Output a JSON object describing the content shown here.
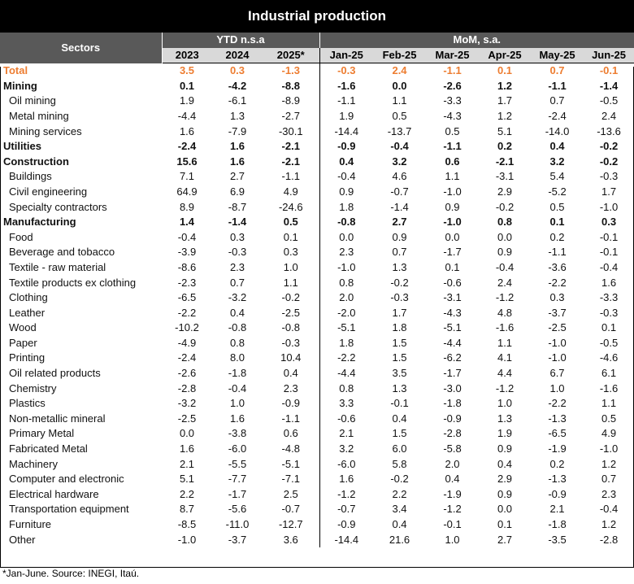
{
  "title": "Industrial production",
  "header": {
    "sectors": "Sectors",
    "ytd_group": "YTD n.s.a",
    "mom_group": "MoM, s.a.",
    "years": [
      "2023",
      "2024",
      "2025*"
    ],
    "months": [
      "Jan-25",
      "Feb-25",
      "Mar-25",
      "Apr-25",
      "May-25",
      "Jun-25"
    ]
  },
  "rows": [
    {
      "name": "Total",
      "level": "total",
      "v": [
        "3.5",
        "0.3",
        "-1.3",
        "-0.3",
        "2.4",
        "-1.1",
        "0.1",
        "0.7",
        "-0.1"
      ]
    },
    {
      "name": "Mining",
      "level": "bold",
      "v": [
        "0.1",
        "-4.2",
        "-8.8",
        "-1.6",
        "0.0",
        "-2.6",
        "1.2",
        "-1.1",
        "-1.4"
      ]
    },
    {
      "name": "Oil mining",
      "level": "sub",
      "v": [
        "1.9",
        "-6.1",
        "-8.9",
        "-1.1",
        "1.1",
        "-3.3",
        "1.7",
        "0.7",
        "-0.5"
      ]
    },
    {
      "name": "Metal mining",
      "level": "sub",
      "v": [
        "-4.4",
        "1.3",
        "-2.7",
        "1.9",
        "0.5",
        "-4.3",
        "1.2",
        "-2.4",
        "2.4"
      ]
    },
    {
      "name": "Mining services",
      "level": "sub",
      "v": [
        "1.6",
        "-7.9",
        "-30.1",
        "-14.4",
        "-13.7",
        "0.5",
        "5.1",
        "-14.0",
        "-13.6"
      ]
    },
    {
      "name": "Utilities",
      "level": "bold",
      "v": [
        "-2.4",
        "1.6",
        "-2.1",
        "-0.9",
        "-0.4",
        "-1.1",
        "0.2",
        "0.4",
        "-0.2"
      ]
    },
    {
      "name": "Construction",
      "level": "bold",
      "v": [
        "15.6",
        "1.6",
        "-2.1",
        "0.4",
        "3.2",
        "0.6",
        "-2.1",
        "3.2",
        "-0.2"
      ]
    },
    {
      "name": "Buildings",
      "level": "sub",
      "v": [
        "7.1",
        "2.7",
        "-1.1",
        "-0.4",
        "4.6",
        "1.1",
        "-3.1",
        "5.4",
        "-0.3"
      ]
    },
    {
      "name": "Civil engineering",
      "level": "sub",
      "v": [
        "64.9",
        "6.9",
        "4.9",
        "0.9",
        "-0.7",
        "-1.0",
        "2.9",
        "-5.2",
        "1.7"
      ]
    },
    {
      "name": "Specialty contractors",
      "level": "sub",
      "v": [
        "8.9",
        "-8.7",
        "-24.6",
        "1.8",
        "-1.4",
        "0.9",
        "-0.2",
        "0.5",
        "-1.0"
      ]
    },
    {
      "name": "Manufacturing",
      "level": "bold",
      "v": [
        "1.4",
        "-1.4",
        "0.5",
        "-0.8",
        "2.7",
        "-1.0",
        "0.8",
        "0.1",
        "0.3"
      ]
    },
    {
      "name": "Food",
      "level": "sub",
      "v": [
        "-0.4",
        "0.3",
        "0.1",
        "0.0",
        "0.9",
        "0.0",
        "0.0",
        "0.2",
        "-0.1"
      ]
    },
    {
      "name": "Beverage and tobacco",
      "level": "sub",
      "v": [
        "-3.9",
        "-0.3",
        "0.3",
        "2.3",
        "0.7",
        "-1.7",
        "0.9",
        "-1.1",
        "-0.1"
      ]
    },
    {
      "name": "Textile - raw material",
      "level": "sub",
      "v": [
        "-8.6",
        "2.3",
        "1.0",
        "-1.0",
        "1.3",
        "0.1",
        "-0.4",
        "-3.6",
        "-0.4"
      ]
    },
    {
      "name": "Textile products ex clothing",
      "level": "sub",
      "v": [
        "-2.3",
        "0.7",
        "1.1",
        "0.8",
        "-0.2",
        "-0.6",
        "2.4",
        "-2.2",
        "1.6"
      ]
    },
    {
      "name": "Clothing",
      "level": "sub",
      "v": [
        "-6.5",
        "-3.2",
        "-0.2",
        "2.0",
        "-0.3",
        "-3.1",
        "-1.2",
        "0.3",
        "-3.3"
      ]
    },
    {
      "name": "Leather",
      "level": "sub",
      "v": [
        "-2.2",
        "0.4",
        "-2.5",
        "-2.0",
        "1.7",
        "-4.3",
        "4.8",
        "-3.7",
        "-0.3"
      ]
    },
    {
      "name": "Wood",
      "level": "sub",
      "v": [
        "-10.2",
        "-0.8",
        "-0.8",
        "-5.1",
        "1.8",
        "-5.1",
        "-1.6",
        "-2.5",
        "0.1"
      ]
    },
    {
      "name": "Paper",
      "level": "sub",
      "v": [
        "-4.9",
        "0.8",
        "-0.3",
        "1.8",
        "1.5",
        "-4.4",
        "1.1",
        "-1.0",
        "-0.5"
      ]
    },
    {
      "name": "Printing",
      "level": "sub",
      "v": [
        "-2.4",
        "8.0",
        "10.4",
        "-2.2",
        "1.5",
        "-6.2",
        "4.1",
        "-1.0",
        "-4.6"
      ]
    },
    {
      "name": "Oil related products",
      "level": "sub",
      "v": [
        "-2.6",
        "-1.8",
        "0.4",
        "-4.4",
        "3.5",
        "-1.7",
        "4.4",
        "6.7",
        "6.1"
      ]
    },
    {
      "name": "Chemistry",
      "level": "sub",
      "v": [
        "-2.8",
        "-0.4",
        "2.3",
        "0.8",
        "1.3",
        "-3.0",
        "-1.2",
        "1.0",
        "-1.6"
      ]
    },
    {
      "name": "Plastics",
      "level": "sub",
      "v": [
        "-3.2",
        "1.0",
        "-0.9",
        "3.3",
        "-0.1",
        "-1.8",
        "1.0",
        "-2.2",
        "1.1"
      ]
    },
    {
      "name": "Non-metallic mineral",
      "level": "sub",
      "v": [
        "-2.5",
        "1.6",
        "-1.1",
        "-0.6",
        "0.4",
        "-0.9",
        "1.3",
        "-1.3",
        "0.5"
      ]
    },
    {
      "name": "Primary Metal",
      "level": "sub",
      "v": [
        "0.0",
        "-3.8",
        "0.6",
        "2.1",
        "1.5",
        "-2.8",
        "1.9",
        "-6.5",
        "4.9"
      ]
    },
    {
      "name": "Fabricated Metal",
      "level": "sub",
      "v": [
        "1.6",
        "-6.0",
        "-4.8",
        "3.2",
        "6.0",
        "-5.8",
        "0.9",
        "-1.9",
        "-1.0"
      ]
    },
    {
      "name": "Machinery",
      "level": "sub",
      "v": [
        "2.1",
        "-5.5",
        "-5.1",
        "-6.0",
        "5.8",
        "2.0",
        "0.4",
        "0.2",
        "1.2"
      ]
    },
    {
      "name": "Computer and electronic",
      "level": "sub",
      "v": [
        "5.1",
        "-7.7",
        "-7.1",
        "1.6",
        "-0.2",
        "0.4",
        "2.9",
        "-1.3",
        "0.7"
      ]
    },
    {
      "name": "Electrical hardware",
      "level": "sub",
      "v": [
        "2.2",
        "-1.7",
        "2.5",
        "-1.2",
        "2.2",
        "-1.9",
        "0.9",
        "-0.9",
        "2.3"
      ]
    },
    {
      "name": "Transportation equipment",
      "level": "sub",
      "v": [
        "8.7",
        "-5.6",
        "-0.7",
        "-0.7",
        "3.4",
        "-1.2",
        "0.0",
        "2.1",
        "-0.4"
      ]
    },
    {
      "name": "Furniture",
      "level": "sub",
      "v": [
        "-8.5",
        "-11.0",
        "-12.7",
        "-0.9",
        "0.4",
        "-0.1",
        "0.1",
        "-1.8",
        "1.2"
      ]
    },
    {
      "name": "Other",
      "level": "sub",
      "v": [
        "-1.0",
        "-3.7",
        "3.6",
        "-14.4",
        "21.6",
        "1.0",
        "2.7",
        "-3.5",
        "-2.8"
      ]
    }
  ],
  "footnote": "*Jan-June. Source: INEGI, Itaú."
}
